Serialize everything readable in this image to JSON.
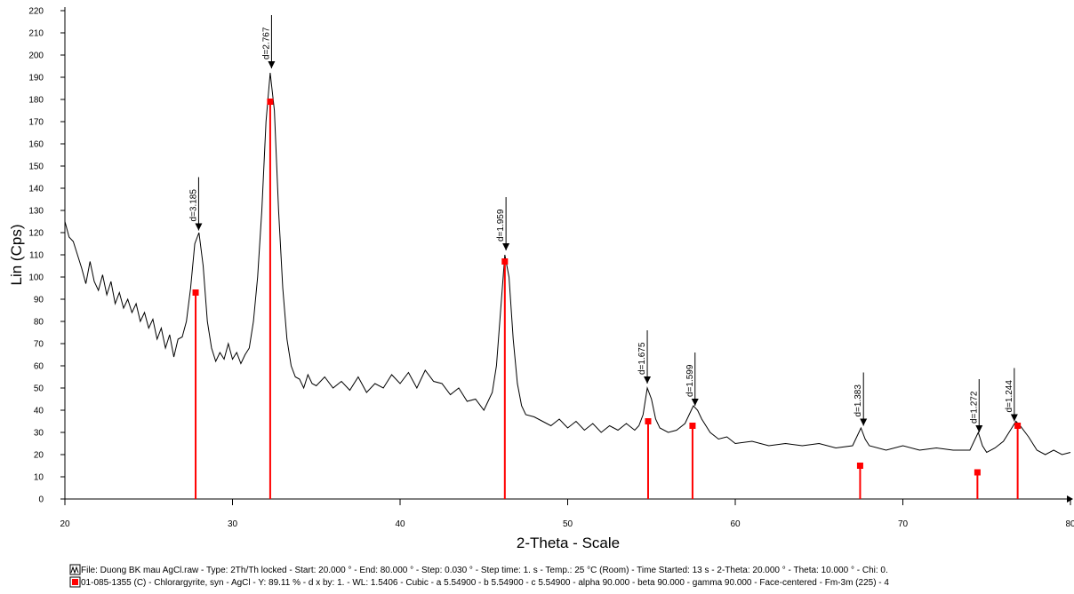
{
  "chart_data": {
    "type": "line",
    "xlabel": "2-Theta - Scale",
    "ylabel": "Lin (Cps)",
    "xlim": [
      20,
      80
    ],
    "ylim": [
      0,
      220
    ],
    "xticks": [
      20,
      30,
      40,
      50,
      60,
      70,
      80
    ],
    "yticks": [
      0,
      10,
      20,
      30,
      40,
      50,
      60,
      70,
      80,
      90,
      100,
      110,
      120,
      130,
      140,
      150,
      160,
      170,
      180,
      190,
      200,
      210,
      220
    ],
    "series": [
      {
        "name": "File: Duong BK mau AgCl.raw - Type: 2Th/Th locked - Start: 20.000 ° - End: 80.000 ° - Step: 0.030 ° - Step time: 1. s - Temp.: 25 °C (Room) - Time Started: 13 s - 2-Theta: 20.000 ° - Theta: 10.000 ° - Chi: 0.",
        "type": "line",
        "color": "#000000",
        "x": [
          20,
          20.25,
          20.5,
          20.75,
          21,
          21.25,
          21.5,
          21.75,
          22,
          22.25,
          22.5,
          22.75,
          23,
          23.25,
          23.5,
          23.75,
          24,
          24.25,
          24.5,
          24.75,
          25,
          25.25,
          25.5,
          25.75,
          26,
          26.25,
          26.5,
          26.75,
          27,
          27.25,
          27.5,
          27.75,
          28,
          28.25,
          28.5,
          28.75,
          29,
          29.25,
          29.5,
          29.75,
          30,
          30.25,
          30.5,
          30.75,
          31,
          31.25,
          31.5,
          31.75,
          32,
          32.25,
          32.5,
          32.75,
          33,
          33.25,
          33.5,
          33.75,
          34,
          34.25,
          34.5,
          34.75,
          35,
          35.5,
          36,
          36.5,
          37,
          37.5,
          38,
          38.5,
          39,
          39.5,
          40,
          40.5,
          41,
          41.5,
          42,
          42.5,
          43,
          43.5,
          44,
          44.5,
          45,
          45.25,
          45.5,
          45.75,
          46,
          46.25,
          46.5,
          46.75,
          47,
          47.25,
          47.5,
          48,
          48.5,
          49,
          49.5,
          50,
          50.5,
          51,
          51.5,
          52,
          52.5,
          53,
          53.5,
          54,
          54.25,
          54.5,
          54.75,
          55,
          55.25,
          55.5,
          56,
          56.5,
          57,
          57.25,
          57.5,
          57.75,
          58,
          58.5,
          59,
          59.5,
          60,
          61,
          62,
          63,
          64,
          65,
          66,
          67,
          67.5,
          67.75,
          68,
          69,
          70,
          71,
          72,
          73,
          74,
          74.5,
          74.75,
          75,
          75.5,
          76,
          76.5,
          76.75,
          77,
          77.5,
          78,
          78.5,
          79,
          79.5,
          80
        ],
        "values": [
          125,
          118,
          116,
          110,
          104,
          97,
          107,
          98,
          94,
          101,
          92,
          98,
          88,
          93,
          86,
          90,
          84,
          88,
          80,
          84,
          77,
          81,
          72,
          77,
          68,
          74,
          64,
          72,
          73,
          80,
          95,
          115,
          120,
          105,
          80,
          68,
          62,
          66,
          63,
          70,
          63,
          66,
          61,
          65,
          68,
          80,
          100,
          130,
          170,
          192,
          175,
          130,
          95,
          72,
          60,
          55,
          54,
          50,
          56,
          52,
          51,
          55,
          50,
          53,
          49,
          55,
          48,
          52,
          50,
          56,
          52,
          57,
          50,
          58,
          53,
          52,
          47,
          50,
          44,
          45,
          40,
          44,
          48,
          60,
          85,
          110,
          100,
          72,
          52,
          42,
          38,
          37,
          35,
          33,
          36,
          32,
          35,
          31,
          34,
          30,
          33,
          31,
          34,
          31,
          33,
          38,
          50,
          45,
          36,
          32,
          30,
          31,
          34,
          38,
          42,
          40,
          36,
          30,
          27,
          28,
          25,
          26,
          24,
          25,
          24,
          25,
          23,
          24,
          32,
          27,
          24,
          22,
          24,
          22,
          23,
          22,
          22,
          30,
          24,
          21,
          23,
          26,
          32,
          35,
          33,
          28,
          22,
          20,
          22,
          20,
          21
        ]
      },
      {
        "name": "01-085-1355 (C) - Chlorargyrite, syn - AgCl - Y: 89.11 % - d x by: 1. - WL: 1.5406 - Cubic - a 5.54900 - b 5.54900 - c 5.54900 - alpha 90.000 - beta 90.000 - gamma 90.000 - Face-centered - Fm-3m (225) - 4",
        "type": "stem",
        "color": "#ff0000",
        "x": [
          27.8,
          32.25,
          46.25,
          54.8,
          57.45,
          67.45,
          74.45,
          76.85
        ],
        "values": [
          93,
          179,
          107,
          35,
          33,
          15,
          12,
          33
        ]
      }
    ],
    "annotations": [
      {
        "text": "d=3.185",
        "x": 27.98,
        "y": 121
      },
      {
        "text": "d=2.767",
        "x": 32.33,
        "y": 194
      },
      {
        "text": "d=1.959",
        "x": 46.32,
        "y": 112
      },
      {
        "text": "d=1.675",
        "x": 54.75,
        "y": 52
      },
      {
        "text": "d=1.599",
        "x": 57.6,
        "y": 42
      },
      {
        "text": "d=1.383",
        "x": 67.65,
        "y": 33
      },
      {
        "text": "d=1.272",
        "x": 74.55,
        "y": 30
      },
      {
        "text": "d=1.244",
        "x": 76.65,
        "y": 35
      }
    ]
  }
}
